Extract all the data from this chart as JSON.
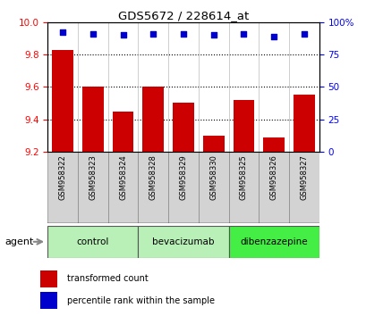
{
  "title": "GDS5672 / 228614_at",
  "samples": [
    "GSM958322",
    "GSM958323",
    "GSM958324",
    "GSM958328",
    "GSM958329",
    "GSM958330",
    "GSM958325",
    "GSM958326",
    "GSM958327"
  ],
  "bar_values": [
    9.83,
    9.6,
    9.45,
    9.6,
    9.5,
    9.3,
    9.52,
    9.29,
    9.55
  ],
  "percentile_values": [
    92,
    91,
    90,
    91,
    91,
    90,
    91,
    89,
    91
  ],
  "bar_color": "#cc0000",
  "dot_color": "#0000cc",
  "ylim_left": [
    9.2,
    10.0
  ],
  "ylim_right": [
    0,
    100
  ],
  "yticks_left": [
    9.2,
    9.4,
    9.6,
    9.8,
    10.0
  ],
  "yticks_right": [
    0,
    25,
    50,
    75,
    100
  ],
  "ytick_labels_right": [
    "0",
    "25",
    "50",
    "75",
    "100%"
  ],
  "groups": [
    {
      "label": "control",
      "indices": [
        0,
        1,
        2
      ],
      "color": "#b8f0b8"
    },
    {
      "label": "bevacizumab",
      "indices": [
        3,
        4,
        5
      ],
      "color": "#b8f0b8"
    },
    {
      "label": "dibenzazepine",
      "indices": [
        6,
        7,
        8
      ],
      "color": "#44ee44"
    }
  ],
  "agent_label": "agent",
  "legend_bar_label": "transformed count",
  "legend_dot_label": "percentile rank within the sample",
  "bar_width": 0.7,
  "sample_panel_color": "#d3d3d3",
  "plot_bg": "#ffffff",
  "grid_dotted_ticks": [
    9.4,
    9.6,
    9.8
  ]
}
